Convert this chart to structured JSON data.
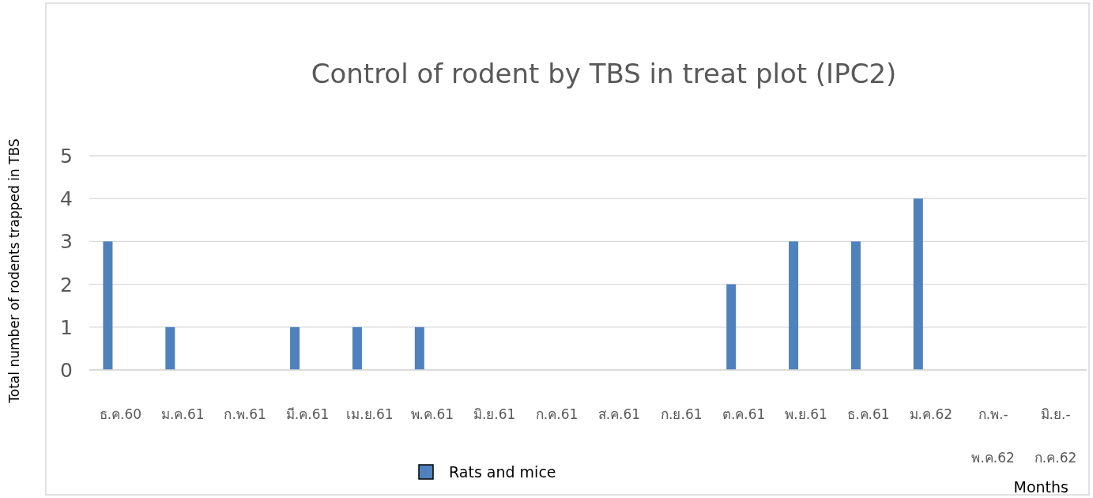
{
  "chart_data": {
    "type": "bar",
    "title": "Control of rodent by TBS in treat plot (IPC2)",
    "xlabel": "Months",
    "ylabel": "Total number of rodents trapped in TBS",
    "categories": [
      "ธ.ค.60",
      "ม.ค.61",
      "ก.พ.61",
      "มี.ค.61",
      "เม.ย.61",
      "พ.ค.61",
      "มิ.ย.61",
      "ก.ค.61",
      "ส.ค.61",
      "ก.ย.61",
      "ต.ค.61",
      "พ.ย.61",
      "ธ.ค.61",
      "ม.ค.62",
      "ก.พ.-พ.ค.62",
      "มิ.ย.-ก.ค.62"
    ],
    "series": [
      {
        "name": "Rats and mice",
        "color": "#4f81bd",
        "values": [
          3,
          1,
          0,
          1,
          1,
          1,
          0,
          0,
          0,
          0,
          2,
          3,
          3,
          4,
          0,
          0
        ]
      }
    ],
    "ylim": [
      0,
      5
    ],
    "yticks": [
      0,
      1,
      2,
      3,
      4,
      5
    ],
    "grid": "y",
    "legend": "bottom"
  }
}
